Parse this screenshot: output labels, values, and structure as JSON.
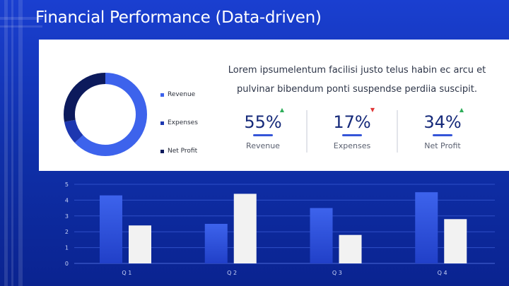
{
  "title": "Financial Performance (Data-driven)",
  "description": "Lorem ipsumelentum facilisi justo telus habin ec arcu et pulvinar bibendum ponti suspendse perdiia suscipit.",
  "donut": {
    "segments": [
      {
        "name": "Revenue",
        "value": 63,
        "color": "#3d63ec"
      },
      {
        "name": "Expenses",
        "value": 9,
        "color": "#1d37b0"
      },
      {
        "name": "Net Profit",
        "value": 28,
        "color": "#0c1a5c"
      }
    ]
  },
  "kpis": [
    {
      "value": "55%",
      "label": "Revenue",
      "trend": "up",
      "trend_color": "#2fae5a"
    },
    {
      "value": "17%",
      "label": "Expenses",
      "trend": "down",
      "trend_color": "#e03636"
    },
    {
      "value": "34%",
      "label": "Net Profit",
      "trend": "up",
      "trend_color": "#2fae5a"
    }
  ],
  "chart_data": {
    "type": "bar",
    "categories": [
      "Q 1",
      "Q 2",
      "Q 3",
      "Q 4"
    ],
    "series": [
      {
        "values": [
          4.3,
          2.5,
          3.5,
          4.5
        ],
        "color": "#3d63ec"
      },
      {
        "values": [
          2.4,
          4.4,
          1.8,
          2.8
        ],
        "color": "#f2f2f2"
      }
    ],
    "ylim": [
      0,
      5
    ],
    "yticks": [
      "0",
      "1",
      "2",
      "3",
      "4",
      "5"
    ],
    "grid": true
  }
}
